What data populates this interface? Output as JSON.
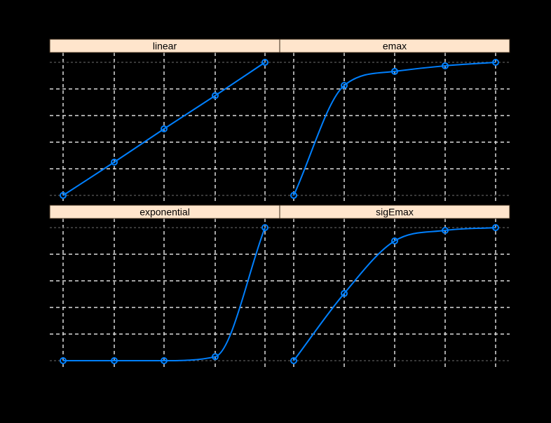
{
  "chart_data": {
    "type": "line",
    "layout": "lattice 2x2 panels",
    "title": "",
    "xlabel": "",
    "ylabel": "",
    "grid": true,
    "x": [
      0,
      1,
      2,
      3,
      4
    ],
    "ylim": [
      0,
      1
    ],
    "panels": [
      {
        "name": "linear",
        "strip_label": "linear",
        "row": 0,
        "col": 0,
        "values": [
          0.0,
          0.25,
          0.5,
          0.75,
          1.0
        ]
      },
      {
        "name": "emax",
        "strip_label": "emax",
        "row": 0,
        "col": 1,
        "values": [
          0.0,
          0.826,
          0.932,
          0.974,
          1.0
        ]
      },
      {
        "name": "exponential",
        "strip_label": "exponential",
        "row": 1,
        "col": 0,
        "values": [
          0.0,
          0.0,
          0.0,
          0.03,
          1.0
        ]
      },
      {
        "name": "sigEmax",
        "strip_label": "sigEmax",
        "row": 1,
        "col": 1,
        "values": [
          0.0,
          0.505,
          0.9,
          0.979,
          1.0
        ]
      }
    ],
    "colors": {
      "background": "#000000",
      "line": "#0080ff",
      "strip_fill": "#ffe5cc",
      "strip_border": "#3a2a1a",
      "grid_inner": "#dcdcdc",
      "grid_outer": "#5a5a5a"
    }
  }
}
